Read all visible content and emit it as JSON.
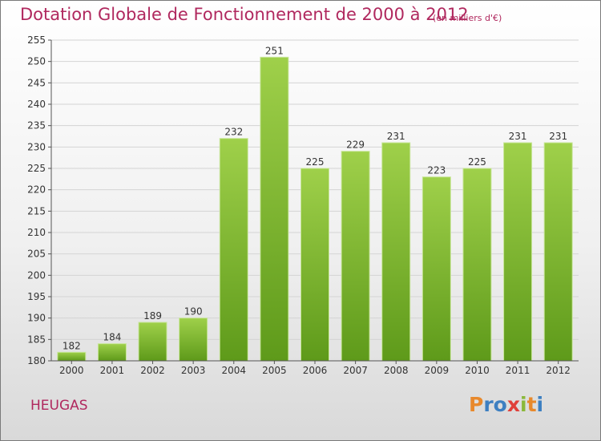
{
  "header": {
    "title": "Dotation Globale de Fonctionnement de 2000 à 2012",
    "subtitle": "(en milliers d'€)"
  },
  "footer": {
    "place": "HEUGAS",
    "logo_letters": [
      "P",
      "r",
      "o",
      "x",
      "i",
      "t",
      "i"
    ],
    "logo_colors": [
      "#e8892c",
      "#3d7fc1",
      "#3d7fc1",
      "#e0403a",
      "#8ab83a",
      "#e8892c",
      "#3d7fc1"
    ]
  },
  "chart_data": {
    "type": "bar",
    "categories": [
      "2000",
      "2001",
      "2002",
      "2003",
      "2004",
      "2005",
      "2006",
      "2007",
      "2008",
      "2009",
      "2010",
      "2011",
      "2012"
    ],
    "values": [
      182,
      184,
      189,
      190,
      232,
      251,
      225,
      229,
      231,
      223,
      225,
      231,
      231
    ],
    "ylim": [
      180,
      255
    ],
    "yticks": [
      180,
      185,
      190,
      195,
      200,
      205,
      210,
      215,
      220,
      225,
      230,
      235,
      240,
      245,
      250,
      255
    ],
    "grid": true,
    "bar_color": "#7ab82e"
  }
}
